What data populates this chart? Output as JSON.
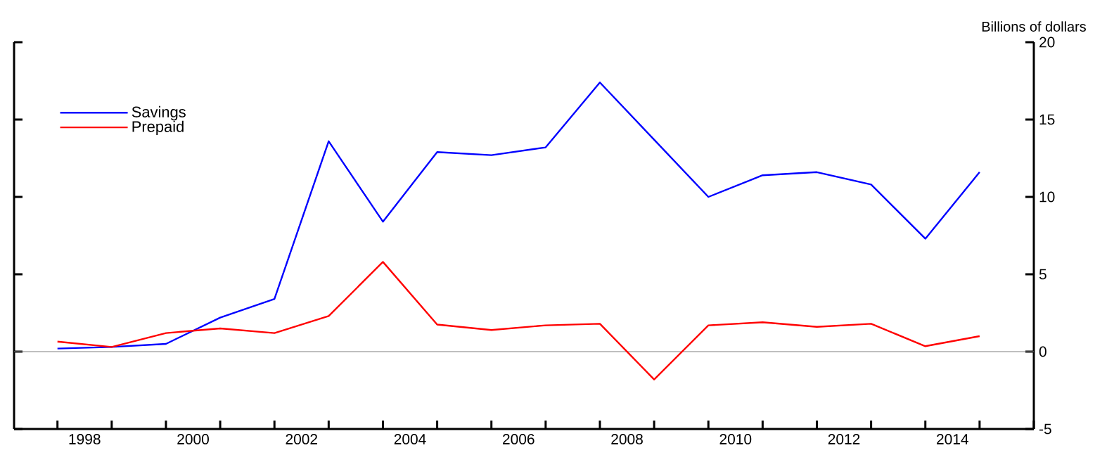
{
  "chart_data": {
    "type": "line",
    "ylabel": "Billions of dollars",
    "x": [
      1998,
      1999,
      2000,
      2001,
      2002,
      2003,
      2004,
      2005,
      2006,
      2007,
      2008,
      2009,
      2010,
      2011,
      2012,
      2013,
      2014,
      2015
    ],
    "series": [
      {
        "name": "Savings",
        "color": "#0000ff",
        "values": [
          0.2,
          0.3,
          0.5,
          2.2,
          3.4,
          13.6,
          8.4,
          12.9,
          12.7,
          13.2,
          17.4,
          13.7,
          10.0,
          11.4,
          11.6,
          10.8,
          7.3,
          11.6
        ]
      },
      {
        "name": "Prepaid",
        "color": "#ff0000",
        "values": [
          0.65,
          0.3,
          1.2,
          1.5,
          1.2,
          2.3,
          5.8,
          1.75,
          1.4,
          1.7,
          1.8,
          -1.8,
          1.7,
          1.9,
          1.6,
          1.8,
          0.35,
          1.0
        ]
      }
    ],
    "xlim": [
      1997.2,
      2016
    ],
    "xticks": [
      {
        "value": 1998,
        "label": null
      },
      {
        "value": 1999,
        "label": null
      },
      {
        "value": 2000,
        "label": null
      },
      {
        "value": 2001,
        "label": null
      },
      {
        "value": 2002,
        "label": null
      },
      {
        "value": 2003,
        "label": null
      },
      {
        "value": 2004,
        "label": null
      },
      {
        "value": 2005,
        "label": null
      },
      {
        "value": 2006,
        "label": null
      },
      {
        "value": 2007,
        "label": null
      },
      {
        "value": 2008,
        "label": null
      },
      {
        "value": 2009,
        "label": null
      },
      {
        "value": 2010,
        "label": null
      },
      {
        "value": 2011,
        "label": null
      },
      {
        "value": 2012,
        "label": null
      },
      {
        "value": 2013,
        "label": null
      },
      {
        "value": 2014,
        "label": null
      },
      {
        "value": 2015,
        "label": null
      },
      {
        "value": 2016,
        "label": null
      },
      {
        "value": 1998.5,
        "label": "1998"
      },
      {
        "value": 2000.5,
        "label": "2000"
      },
      {
        "value": 2002.5,
        "label": "2002"
      },
      {
        "value": 2004.5,
        "label": "2004"
      },
      {
        "value": 2006.5,
        "label": "2006"
      },
      {
        "value": 2008.5,
        "label": "2008"
      },
      {
        "value": 2010.5,
        "label": "2010"
      },
      {
        "value": 2012.5,
        "label": "2012"
      },
      {
        "value": 2014.5,
        "label": "2014"
      }
    ],
    "ylim": [
      -5,
      20
    ],
    "yticks": [
      -5,
      0,
      5,
      10,
      15,
      20
    ],
    "ref_lines": [
      {
        "axis": "y",
        "value": 0,
        "color": "#808080"
      }
    ],
    "legend": "top left",
    "grid": false,
    "marker": "none",
    "line_style": "solid"
  }
}
